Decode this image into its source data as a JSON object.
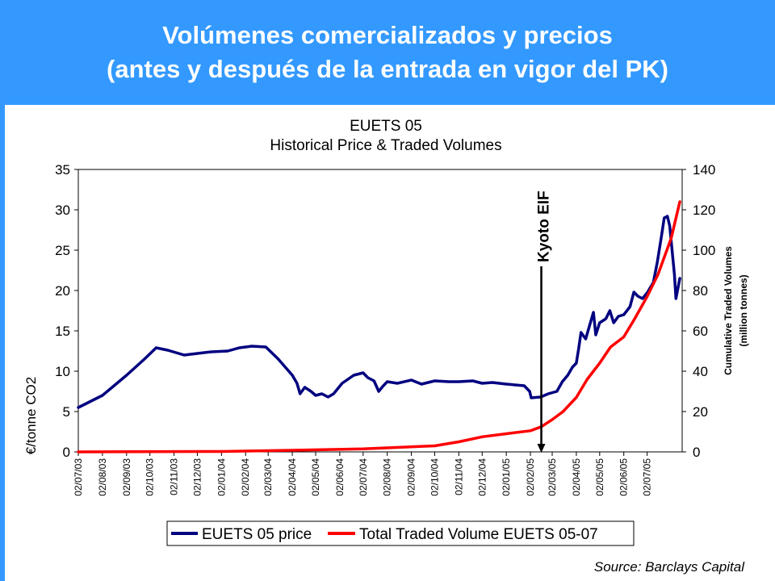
{
  "header": {
    "title_line1": "Volúmenes comercializados y precios",
    "title_line2": "(antes y después de la entrada en vigor del PK)"
  },
  "chart_data": {
    "type": "line",
    "title": "EUETS 05",
    "subtitle": "Historical Price & Traded Volumes",
    "ylabel": "€/tonne CO2",
    "y2label": "Cumulative Traded Volumes",
    "y2label_sub": "(million tonnes)",
    "ylim": [
      0,
      35
    ],
    "y2lim": [
      0,
      140
    ],
    "yticks": [
      "0",
      "5",
      "10",
      "15",
      "20",
      "25",
      "30",
      "35"
    ],
    "y2ticks": [
      "0",
      "20",
      "40",
      "60",
      "80",
      "100",
      "120",
      "140"
    ],
    "xticks": [
      "02/07/03",
      "02/08/03",
      "02/09/03",
      "02/10/03",
      "02/11/03",
      "02/12/03",
      "02/01/04",
      "02/02/04",
      "02/03/04",
      "02/04/04",
      "02/05/04",
      "02/06/04",
      "02/07/04",
      "02/08/04",
      "02/09/04",
      "02/10/04",
      "02/11/04",
      "02/12/04",
      "02/01/05",
      "02/02/05",
      "02/03/05",
      "02/04/05",
      "02/05/05",
      "02/06/05",
      "02/07/05"
    ],
    "grid": false,
    "legend_position": "bottom",
    "annotation": "Kyoto EIF",
    "annotation_x": "2005-02-16",
    "source": "Source:  Barclays Capital",
    "series": [
      {
        "name": "EUETS 05 price",
        "axis": "left",
        "color": "#000080",
        "points": [
          [
            "2003-07-02",
            5.5
          ],
          [
            "2003-08-02",
            7.0
          ],
          [
            "2003-09-02",
            9.5
          ],
          [
            "2003-09-25",
            11.5
          ],
          [
            "2003-10-10",
            12.9
          ],
          [
            "2003-10-25",
            12.6
          ],
          [
            "2003-11-15",
            12.0
          ],
          [
            "2003-12-02",
            12.2
          ],
          [
            "2003-12-20",
            12.4
          ],
          [
            "2004-01-10",
            12.5
          ],
          [
            "2004-01-25",
            12.9
          ],
          [
            "2004-02-10",
            13.1
          ],
          [
            "2004-02-28",
            13.0
          ],
          [
            "2004-03-15",
            11.5
          ],
          [
            "2004-04-02",
            9.5
          ],
          [
            "2004-04-08",
            8.5
          ],
          [
            "2004-04-12",
            7.2
          ],
          [
            "2004-04-18",
            8.0
          ],
          [
            "2004-04-26",
            7.5
          ],
          [
            "2004-05-02",
            7.0
          ],
          [
            "2004-05-10",
            7.2
          ],
          [
            "2004-05-18",
            6.8
          ],
          [
            "2004-05-25",
            7.2
          ],
          [
            "2004-06-05",
            8.5
          ],
          [
            "2004-06-20",
            9.5
          ],
          [
            "2004-07-02",
            9.8
          ],
          [
            "2004-07-08",
            9.2
          ],
          [
            "2004-07-16",
            8.8
          ],
          [
            "2004-07-22",
            7.5
          ],
          [
            "2004-07-28",
            8.2
          ],
          [
            "2004-08-02",
            8.7
          ],
          [
            "2004-08-15",
            8.5
          ],
          [
            "2004-09-02",
            8.9
          ],
          [
            "2004-09-15",
            8.4
          ],
          [
            "2004-10-02",
            8.8
          ],
          [
            "2004-10-20",
            8.7
          ],
          [
            "2004-11-02",
            8.7
          ],
          [
            "2004-11-20",
            8.8
          ],
          [
            "2004-12-02",
            8.5
          ],
          [
            "2004-12-15",
            8.6
          ],
          [
            "2005-01-02",
            8.4
          ],
          [
            "2005-01-25",
            8.2
          ],
          [
            "2005-02-01",
            7.5
          ],
          [
            "2005-02-03",
            6.7
          ],
          [
            "2005-02-15",
            6.8
          ],
          [
            "2005-02-25",
            7.2
          ],
          [
            "2005-03-08",
            7.5
          ],
          [
            "2005-03-15",
            8.7
          ],
          [
            "2005-03-22",
            9.5
          ],
          [
            "2005-03-28",
            10.5
          ],
          [
            "2005-04-02",
            11.0
          ],
          [
            "2005-04-05",
            12.8
          ],
          [
            "2005-04-08",
            14.8
          ],
          [
            "2005-04-14",
            14.0
          ],
          [
            "2005-04-20",
            16.0
          ],
          [
            "2005-04-24",
            17.3
          ],
          [
            "2005-04-27",
            14.5
          ],
          [
            "2005-05-02",
            16.0
          ],
          [
            "2005-05-10",
            16.5
          ],
          [
            "2005-05-15",
            17.5
          ],
          [
            "2005-05-20",
            16.0
          ],
          [
            "2005-05-26",
            16.8
          ],
          [
            "2005-06-02",
            17.0
          ],
          [
            "2005-06-10",
            18.0
          ],
          [
            "2005-06-15",
            19.8
          ],
          [
            "2005-06-20",
            19.3
          ],
          [
            "2005-06-26",
            19.0
          ],
          [
            "2005-07-02",
            19.7
          ],
          [
            "2005-07-10",
            21.0
          ],
          [
            "2005-07-15",
            23.5
          ],
          [
            "2005-07-20",
            26.5
          ],
          [
            "2005-07-24",
            29.0
          ],
          [
            "2005-07-28",
            29.2
          ],
          [
            "2005-07-31",
            28.0
          ],
          [
            "2005-08-03",
            25.0
          ],
          [
            "2005-08-06",
            22.0
          ],
          [
            "2005-08-08",
            19.0
          ],
          [
            "2005-08-10",
            20.0
          ],
          [
            "2005-08-13",
            21.5
          ]
        ]
      },
      {
        "name": "Total Traded Volume EUETS 05-07",
        "axis": "right",
        "color": "#ff0000",
        "points": [
          [
            "2003-07-02",
            0
          ],
          [
            "2004-01-02",
            0.2
          ],
          [
            "2004-04-02",
            0.8
          ],
          [
            "2004-07-02",
            1.5
          ],
          [
            "2004-10-02",
            3.0
          ],
          [
            "2004-11-02",
            5.0
          ],
          [
            "2004-12-02",
            7.5
          ],
          [
            "2005-01-02",
            9.0
          ],
          [
            "2005-02-02",
            10.5
          ],
          [
            "2005-02-16",
            12.5
          ],
          [
            "2005-03-02",
            16.0
          ],
          [
            "2005-03-16",
            20.0
          ],
          [
            "2005-04-02",
            27.0
          ],
          [
            "2005-04-16",
            36.0
          ],
          [
            "2005-05-02",
            44.0
          ],
          [
            "2005-05-16",
            52.0
          ],
          [
            "2005-06-02",
            57.0
          ],
          [
            "2005-06-16",
            66.0
          ],
          [
            "2005-07-02",
            77.0
          ],
          [
            "2005-07-16",
            88.0
          ],
          [
            "2005-08-02",
            106.0
          ],
          [
            "2005-08-13",
            124.0
          ]
        ]
      }
    ]
  }
}
